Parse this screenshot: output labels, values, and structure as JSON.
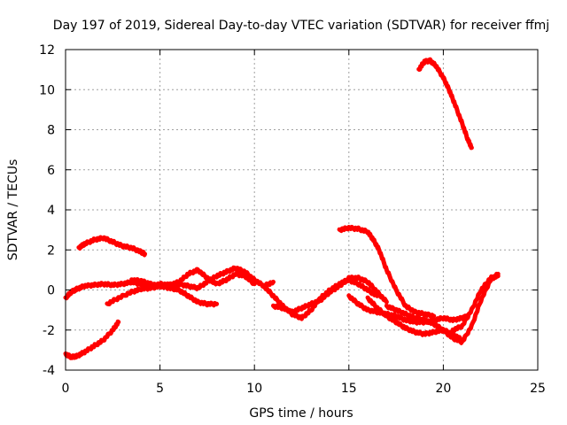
{
  "chart_data": {
    "type": "scatter",
    "title": "Day 197 of 2019, Sidereal Day-to-day VTEC variation (SDTVAR) for receiver ffmj",
    "xlabel": "GPS time / hours",
    "ylabel": "SDTVAR / TECUs",
    "xlim": [
      0,
      25
    ],
    "ylim": [
      -4,
      12
    ],
    "xticks": [
      0,
      5,
      10,
      15,
      20,
      25
    ],
    "yticks": [
      -4,
      -2,
      0,
      2,
      4,
      6,
      8,
      10,
      12
    ],
    "xtick_labels": [
      "0",
      "5",
      "10",
      "15",
      "20",
      "25"
    ],
    "ytick_labels": [
      "-4",
      "-2",
      "0",
      "2",
      "4",
      "6",
      "8",
      "10",
      "12"
    ],
    "grid": true,
    "color": "#ff0000",
    "series": [
      {
        "name": "s1",
        "x": [
          0.7,
          1.0,
          1.5,
          2.0,
          2.5,
          3.0,
          3.5,
          4.0,
          4.2
        ],
        "y": [
          2.1,
          2.3,
          2.5,
          2.6,
          2.4,
          2.2,
          2.1,
          1.9,
          1.8
        ]
      },
      {
        "name": "s2",
        "x": [
          0.0,
          0.3,
          0.6,
          1.0,
          1.5,
          2.0,
          2.5,
          2.8
        ],
        "y": [
          -3.2,
          -3.35,
          -3.3,
          -3.1,
          -2.8,
          -2.5,
          -2.0,
          -1.6
        ]
      },
      {
        "name": "s3",
        "x": [
          0.0,
          0.3,
          0.6,
          1.0,
          1.5,
          2.0,
          2.5,
          3.0,
          3.5,
          4.0,
          4.5,
          5.0,
          5.5,
          6.0,
          6.5,
          7.0,
          7.5,
          8.0,
          8.5,
          9.0,
          9.5,
          10.0,
          10.5,
          11.0
        ],
        "y": [
          -0.4,
          -0.1,
          0.05,
          0.2,
          0.25,
          0.3,
          0.25,
          0.3,
          0.4,
          0.3,
          0.2,
          0.3,
          0.25,
          0.3,
          0.2,
          0.1,
          0.4,
          0.7,
          0.9,
          1.1,
          0.9,
          0.5,
          0.2,
          0.4
        ]
      },
      {
        "name": "s4",
        "x": [
          2.2,
          2.8,
          3.5,
          4.0,
          4.5,
          5.0,
          5.5,
          6.0,
          6.5,
          7.0,
          7.5,
          8.0
        ],
        "y": [
          -0.7,
          -0.4,
          -0.1,
          0.05,
          0.1,
          0.2,
          0.1,
          0.0,
          -0.3,
          -0.6,
          -0.7,
          -0.7
        ]
      },
      {
        "name": "s5",
        "x": [
          3.5,
          4.0,
          4.5,
          5.0,
          5.5,
          6.0,
          6.5,
          7.0,
          7.5,
          8.0,
          8.5,
          9.0,
          9.5,
          10.0
        ],
        "y": [
          0.5,
          0.45,
          0.3,
          0.2,
          0.25,
          0.4,
          0.8,
          1.0,
          0.6,
          0.3,
          0.5,
          0.8,
          0.7,
          0.3
        ]
      },
      {
        "name": "s6",
        "x": [
          10.5,
          11.0,
          11.5,
          12.0,
          12.5,
          13.0,
          13.5,
          14.0,
          14.5,
          15.0,
          15.5,
          16.0,
          16.5
        ],
        "y": [
          0.2,
          -0.3,
          -0.8,
          -1.2,
          -1.4,
          -1.0,
          -0.4,
          0.0,
          0.3,
          0.5,
          0.3,
          0.0,
          -0.3
        ]
      },
      {
        "name": "s7",
        "x": [
          11.0,
          11.5,
          12.0,
          12.5,
          13.0,
          13.5,
          14.0,
          14.5,
          15.0,
          15.5,
          16.0,
          16.5,
          17.0
        ],
        "y": [
          -0.8,
          -0.9,
          -1.1,
          -0.9,
          -0.7,
          -0.5,
          -0.1,
          0.2,
          0.6,
          0.6,
          0.4,
          -0.1,
          -0.6
        ]
      },
      {
        "name": "s8",
        "x": [
          15.0,
          15.5,
          16.0,
          16.5,
          17.0,
          17.5,
          18.0,
          18.5,
          19.0,
          19.5,
          20.0,
          20.5,
          21.0,
          21.3
        ],
        "y": [
          -0.3,
          -0.7,
          -1.0,
          -1.1,
          -1.2,
          -1.3,
          -1.5,
          -1.6,
          -1.6,
          -1.5,
          -1.4,
          -1.5,
          -1.4,
          -1.3
        ]
      },
      {
        "name": "s9",
        "x": [
          14.5,
          15.0,
          15.5,
          16.0,
          16.3,
          16.6,
          17.0,
          17.5,
          18.0,
          18.5,
          19.0,
          19.5
        ],
        "y": [
          3.0,
          3.1,
          3.05,
          2.9,
          2.5,
          2.0,
          1.0,
          0.0,
          -0.8,
          -1.1,
          -1.2,
          -1.3
        ]
      },
      {
        "name": "s10",
        "x": [
          16.0,
          16.5,
          17.0,
          17.5,
          18.0,
          18.5,
          19.0,
          19.5,
          20.0,
          20.5,
          21.0
        ],
        "y": [
          -0.4,
          -0.9,
          -1.3,
          -1.6,
          -1.9,
          -2.1,
          -2.2,
          -2.1,
          -2.0,
          -2.2,
          -2.5
        ]
      },
      {
        "name": "s11",
        "x": [
          17.0,
          17.5,
          18.0,
          18.5,
          19.0,
          19.5,
          20.0,
          20.5,
          21.0,
          21.5,
          22.0,
          22.5,
          22.9
        ],
        "y": [
          -0.8,
          -1.0,
          -1.2,
          -1.4,
          -1.5,
          -1.7,
          -2.0,
          -2.4,
          -2.6,
          -1.8,
          -0.5,
          0.5,
          0.8
        ]
      },
      {
        "name": "s12",
        "x": [
          20.5,
          21.0,
          21.5,
          22.0,
          22.5,
          22.9
        ],
        "y": [
          -2.0,
          -1.8,
          -1.0,
          0.0,
          0.6,
          0.7
        ]
      },
      {
        "name": "s13",
        "x": [
          18.7,
          19.0,
          19.3,
          19.6,
          20.0,
          20.3,
          20.6,
          21.0,
          21.3,
          21.5
        ],
        "y": [
          11.0,
          11.4,
          11.45,
          11.2,
          10.6,
          10.0,
          9.3,
          8.3,
          7.5,
          7.1
        ]
      }
    ]
  }
}
